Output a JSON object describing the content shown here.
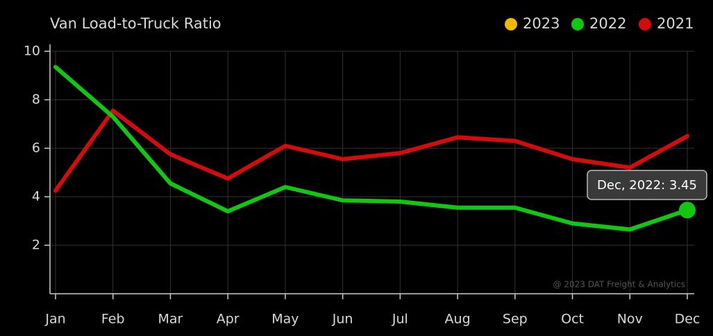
{
  "chart_data": {
    "type": "line",
    "title": "Van Load-to-Truck Ratio",
    "categories": [
      "Jan",
      "Feb",
      "Mar",
      "Apr",
      "May",
      "Jun",
      "Jul",
      "Aug",
      "Sep",
      "Oct",
      "Nov",
      "Dec"
    ],
    "series": [
      {
        "name": "2023",
        "color": "#f5b800",
        "values": [
          null,
          null,
          null,
          null,
          null,
          null,
          null,
          null,
          null,
          null,
          null,
          null
        ]
      },
      {
        "name": "2022",
        "color": "#12c712",
        "values": [
          9.35,
          7.3,
          4.55,
          3.4,
          4.4,
          3.85,
          3.8,
          3.55,
          3.55,
          2.9,
          2.65,
          3.45
        ]
      },
      {
        "name": "2021",
        "color": "#d40c0c",
        "values": [
          4.25,
          7.55,
          5.75,
          4.75,
          6.1,
          5.55,
          5.8,
          6.45,
          6.3,
          5.55,
          5.2,
          6.5
        ]
      }
    ],
    "ylim": [
      0,
      10
    ],
    "yticks": [
      2,
      4,
      6,
      8,
      10
    ],
    "grid": true,
    "legend": "top-right",
    "tooltip": "Dec, 2022: 3.45",
    "watermark": "@ 2023 DAT Freight & Analytics"
  }
}
